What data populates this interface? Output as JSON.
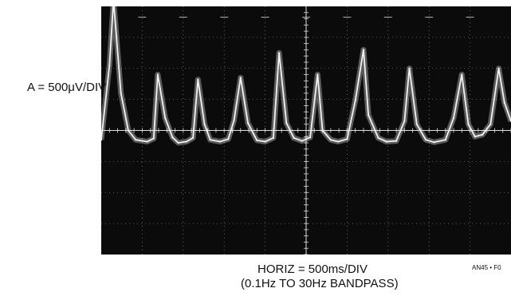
{
  "labels": {
    "vertical_scale": "A = 500μV/DIV",
    "horizontal_scale": "HORIZ = 500ms/DIV",
    "bandpass": "(0.1Hz TO 30Hz BANDPASS)",
    "figure_id": "AN45 • F0"
  },
  "colors": {
    "screen": "#0b0b0b",
    "trace": "#f2f2f2",
    "graticule": "#dcdcdc"
  },
  "chart_data": {
    "type": "line",
    "title": "",
    "xlabel": "HORIZ = 500ms/DIV",
    "ylabel": "A = 500μV/DIV",
    "x_units": "ms",
    "y_units": "μV",
    "xlim": [
      0,
      5000
    ],
    "ylim": [
      -2000,
      2000
    ],
    "grid": true,
    "divisions": {
      "horizontal": 10,
      "vertical": 8
    },
    "series": [
      {
        "x": [
          0,
          100,
          150,
          240,
          330,
          420,
          560,
          640,
          690,
          780,
          870,
          940,
          1040,
          1120,
          1180,
          1260,
          1330,
          1450,
          1550,
          1620,
          1700,
          1790,
          1900,
          2000,
          2100,
          2170,
          2260,
          2350,
          2450,
          2550,
          2640,
          2700,
          2800,
          2890,
          3000,
          3100,
          3200,
          3260,
          3380,
          3480,
          3600,
          3700,
          3760,
          3850,
          3960,
          4060,
          4200,
          4300,
          4400,
          4480,
          4560,
          4650,
          4750,
          4850,
          4920,
          5000
        ],
        "y": [
          -150,
          1050,
          2100,
          600,
          0,
          -150,
          -180,
          -130,
          900,
          200,
          -110,
          -200,
          -180,
          -120,
          820,
          100,
          -150,
          -180,
          -140,
          160,
          850,
          120,
          -160,
          -180,
          -120,
          1250,
          120,
          -120,
          -170,
          -110,
          900,
          0,
          -150,
          -180,
          -140,
          480,
          1300,
          250,
          -120,
          -180,
          -170,
          150,
          1000,
          100,
          -150,
          -190,
          -150,
          200,
          900,
          100,
          -100,
          -70,
          100,
          1000,
          450,
          150
        ]
      }
    ]
  }
}
